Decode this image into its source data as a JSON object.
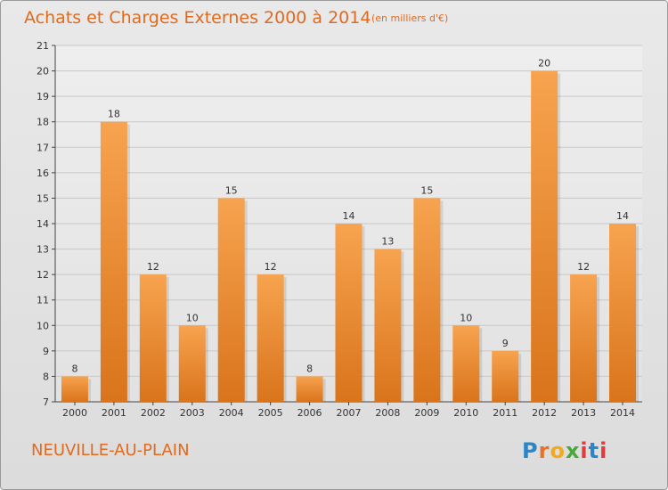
{
  "header": {
    "title": "Achats et Charges Externes 2000 à 2014",
    "subtitle": "(en milliers d'€)"
  },
  "footer": {
    "city": "NEUVILLE-AU-PLAIN",
    "logo": {
      "text": "Proxiti",
      "letters": [
        "P",
        "r",
        "o",
        "x",
        "i",
        "t",
        "i"
      ]
    }
  },
  "colors": {
    "accent": "#e06a1f",
    "bar_top": "#f7a34f",
    "bar_bottom": "#d9741b",
    "grid": "#c8c8c8",
    "axis": "#444444"
  },
  "chart_data": {
    "type": "bar",
    "categories": [
      "2000",
      "2001",
      "2002",
      "2003",
      "2004",
      "2005",
      "2006",
      "2007",
      "2008",
      "2009",
      "2010",
      "2011",
      "2012",
      "2013",
      "2014"
    ],
    "values": [
      8,
      18,
      12,
      10,
      15,
      12,
      8,
      14,
      13,
      15,
      10,
      9,
      20,
      12,
      14
    ],
    "ylim": [
      7,
      21
    ],
    "yticks": [
      7,
      8,
      9,
      10,
      11,
      12,
      13,
      14,
      15,
      16,
      17,
      18,
      19,
      20,
      21
    ],
    "grid": true
  }
}
